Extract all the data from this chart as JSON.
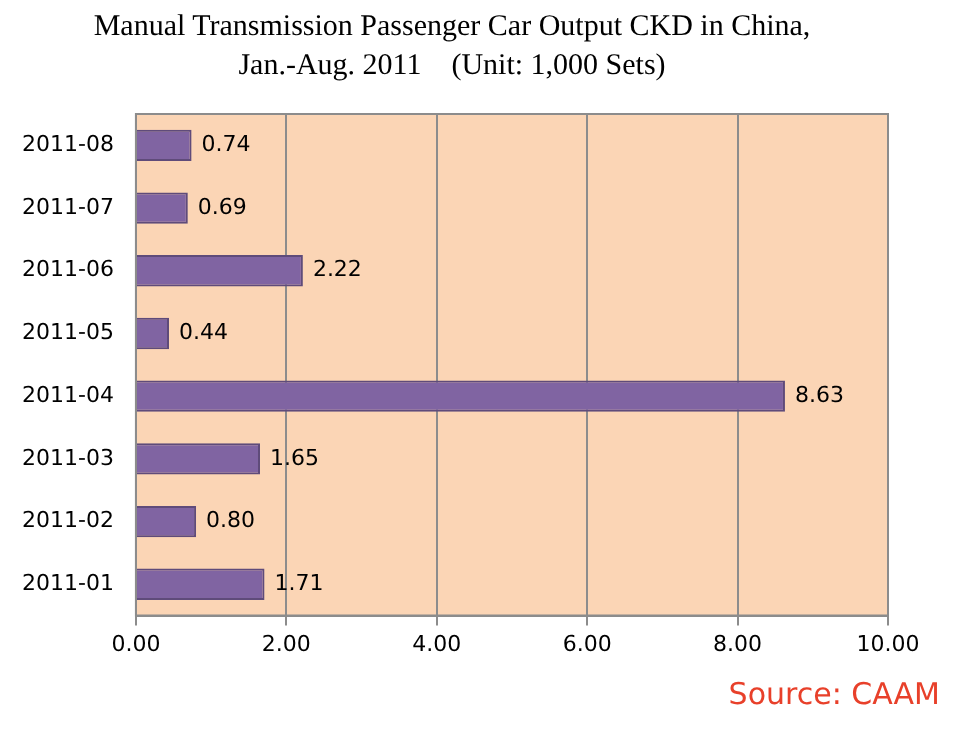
{
  "chart_data": {
    "type": "bar",
    "orientation": "horizontal",
    "title": "Manual Transmission Passenger Car Output CKD in China,\nJan.-Aug. 2011    (Unit: 1,000 Sets)",
    "categories": [
      "2011-08",
      "2011-07",
      "2011-06",
      "2011-05",
      "2011-04",
      "2011-03",
      "2011-02",
      "2011-01"
    ],
    "values": [
      0.74,
      0.69,
      2.22,
      0.44,
      8.63,
      1.65,
      0.8,
      1.71
    ],
    "value_labels": [
      "0.74",
      "0.69",
      "2.22",
      "0.44",
      "8.63",
      "1.65",
      "0.80",
      "1.71"
    ],
    "color": "#8064a2",
    "xlim": [
      0,
      10
    ],
    "xticks": [
      {
        "value": 0,
        "label": "0.00"
      },
      {
        "value": 2,
        "label": "2.00"
      },
      {
        "value": 4,
        "label": "4.00"
      },
      {
        "value": 6,
        "label": "6.00"
      },
      {
        "value": 8,
        "label": "8.00"
      },
      {
        "value": 10,
        "label": "10.00"
      }
    ],
    "grid": "x",
    "legend": false,
    "annotations": [
      "Source:   CAAM"
    ]
  }
}
